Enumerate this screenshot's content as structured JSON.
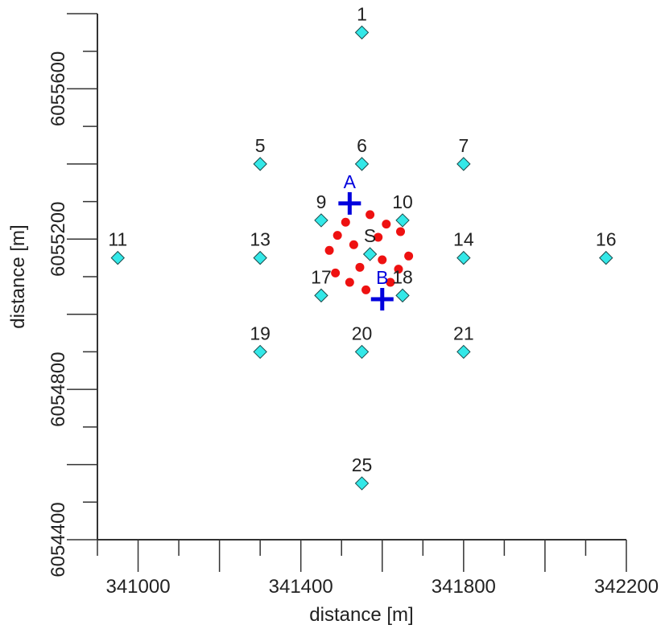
{
  "chart_data": {
    "type": "scatter",
    "title": "",
    "xlabel": "distance [m]",
    "ylabel": "distance [m]",
    "xlim": [
      340900,
      342200
    ],
    "ylim": [
      6054400,
      6055800
    ],
    "xticks": [
      341000,
      341400,
      341800,
      342200
    ],
    "yticks": [
      6054400,
      6054800,
      6055200,
      6055600
    ],
    "grid": false,
    "colors": {
      "receiver": "#33e8e8",
      "source_points": "#ee1111",
      "marker": "#0000dd",
      "axis": "#333333"
    },
    "series": [
      {
        "kind": "labeled-diamonds",
        "points": [
          {
            "label": "1",
            "x": 341550,
            "y": 6055750
          },
          {
            "label": "5",
            "x": 341300,
            "y": 6055400
          },
          {
            "label": "6",
            "x": 341550,
            "y": 6055400
          },
          {
            "label": "7",
            "x": 341800,
            "y": 6055400
          },
          {
            "label": "9",
            "x": 341450,
            "y": 6055250
          },
          {
            "label": "10",
            "x": 341650,
            "y": 6055250
          },
          {
            "label": "11",
            "x": 340950,
            "y": 6055150
          },
          {
            "label": "13",
            "x": 341300,
            "y": 6055150
          },
          {
            "label": "S",
            "x": 341570,
            "y": 6055160
          },
          {
            "label": "14",
            "x": 341800,
            "y": 6055150
          },
          {
            "label": "16",
            "x": 342150,
            "y": 6055150
          },
          {
            "label": "17",
            "x": 341450,
            "y": 6055050
          },
          {
            "label": "18",
            "x": 341650,
            "y": 6055050
          },
          {
            "label": "19",
            "x": 341300,
            "y": 6054900
          },
          {
            "label": "20",
            "x": 341550,
            "y": 6054900
          },
          {
            "label": "21",
            "x": 341800,
            "y": 6054900
          },
          {
            "label": "25",
            "x": 341550,
            "y": 6054550
          }
        ]
      },
      {
        "kind": "red-dots",
        "points": [
          {
            "x": 341570,
            "y": 6055265
          },
          {
            "x": 341510,
            "y": 6055245
          },
          {
            "x": 341610,
            "y": 6055240
          },
          {
            "x": 341645,
            "y": 6055220
          },
          {
            "x": 341490,
            "y": 6055210
          },
          {
            "x": 341590,
            "y": 6055205
          },
          {
            "x": 341530,
            "y": 6055185
          },
          {
            "x": 341470,
            "y": 6055170
          },
          {
            "x": 341665,
            "y": 6055155
          },
          {
            "x": 341600,
            "y": 6055145
          },
          {
            "x": 341545,
            "y": 6055125
          },
          {
            "x": 341640,
            "y": 6055120
          },
          {
            "x": 341485,
            "y": 6055110
          },
          {
            "x": 341520,
            "y": 6055085
          },
          {
            "x": 341620,
            "y": 6055085
          },
          {
            "x": 341560,
            "y": 6055065
          }
        ]
      },
      {
        "kind": "crosses",
        "points": [
          {
            "label": "A",
            "x": 341520,
            "y": 6055295
          },
          {
            "label": "B",
            "x": 341600,
            "y": 6055040
          }
        ]
      }
    ]
  }
}
